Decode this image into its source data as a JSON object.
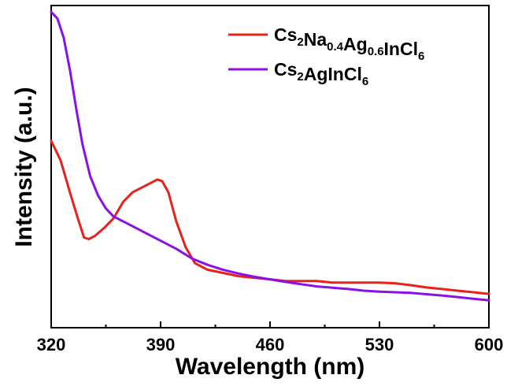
{
  "chart_data": {
    "type": "line",
    "title": "",
    "xlabel": "Wavelength (nm)",
    "ylabel": "Intensity (a.u.)",
    "xlim": [
      320,
      600
    ],
    "ylim": [
      0,
      1
    ],
    "xticks": [
      320,
      390,
      460,
      530,
      600
    ],
    "yticks_shown": false,
    "grid": false,
    "legend": "top-right",
    "series": [
      {
        "name": "Cs2Na0.4Ag0.6InCl6",
        "legend_parts": [
          {
            "t": "Cs",
            "sub": false
          },
          {
            "t": "2",
            "sub": true
          },
          {
            "t": "Na",
            "sub": false
          },
          {
            "t": "0.4",
            "sub": true
          },
          {
            "t": "Ag",
            "sub": false
          },
          {
            "t": "0.6",
            "sub": true
          },
          {
            "t": "InCl",
            "sub": false
          },
          {
            "t": "6",
            "sub": true
          }
        ],
        "color": "#e8211c",
        "x": [
          320,
          326,
          332,
          337,
          341,
          344,
          348,
          354,
          360,
          366,
          372,
          378,
          384,
          388,
          391,
          395,
          400,
          406,
          412,
          420,
          430,
          440,
          450,
          460,
          470,
          480,
          490,
          500,
          510,
          520,
          530,
          540,
          550,
          560,
          570,
          580,
          590,
          600
        ],
        "y": [
          0.58,
          0.52,
          0.42,
          0.34,
          0.28,
          0.275,
          0.285,
          0.31,
          0.34,
          0.39,
          0.42,
          0.435,
          0.45,
          0.46,
          0.455,
          0.42,
          0.33,
          0.25,
          0.2,
          0.18,
          0.17,
          0.16,
          0.155,
          0.15,
          0.145,
          0.145,
          0.145,
          0.14,
          0.14,
          0.14,
          0.14,
          0.138,
          0.132,
          0.125,
          0.12,
          0.115,
          0.11,
          0.105
        ]
      },
      {
        "name": "Cs2AgInCl6",
        "legend_parts": [
          {
            "t": "Cs",
            "sub": false
          },
          {
            "t": "2",
            "sub": true
          },
          {
            "t": "AgInCl",
            "sub": false
          },
          {
            "t": "6",
            "sub": true
          }
        ],
        "color": "#8a10e8",
        "x": [
          320,
          324,
          328,
          332,
          336,
          340,
          345,
          350,
          355,
          360,
          370,
          380,
          390,
          400,
          410,
          420,
          430,
          440,
          450,
          460,
          470,
          480,
          490,
          500,
          510,
          520,
          530,
          540,
          550,
          560,
          570,
          580,
          590,
          600
        ],
        "y": [
          0.98,
          0.96,
          0.9,
          0.8,
          0.68,
          0.57,
          0.47,
          0.41,
          0.37,
          0.345,
          0.32,
          0.295,
          0.27,
          0.245,
          0.215,
          0.195,
          0.18,
          0.168,
          0.158,
          0.15,
          0.142,
          0.135,
          0.128,
          0.124,
          0.12,
          0.115,
          0.112,
          0.11,
          0.108,
          0.104,
          0.1,
          0.095,
          0.09,
          0.085
        ]
      }
    ]
  }
}
